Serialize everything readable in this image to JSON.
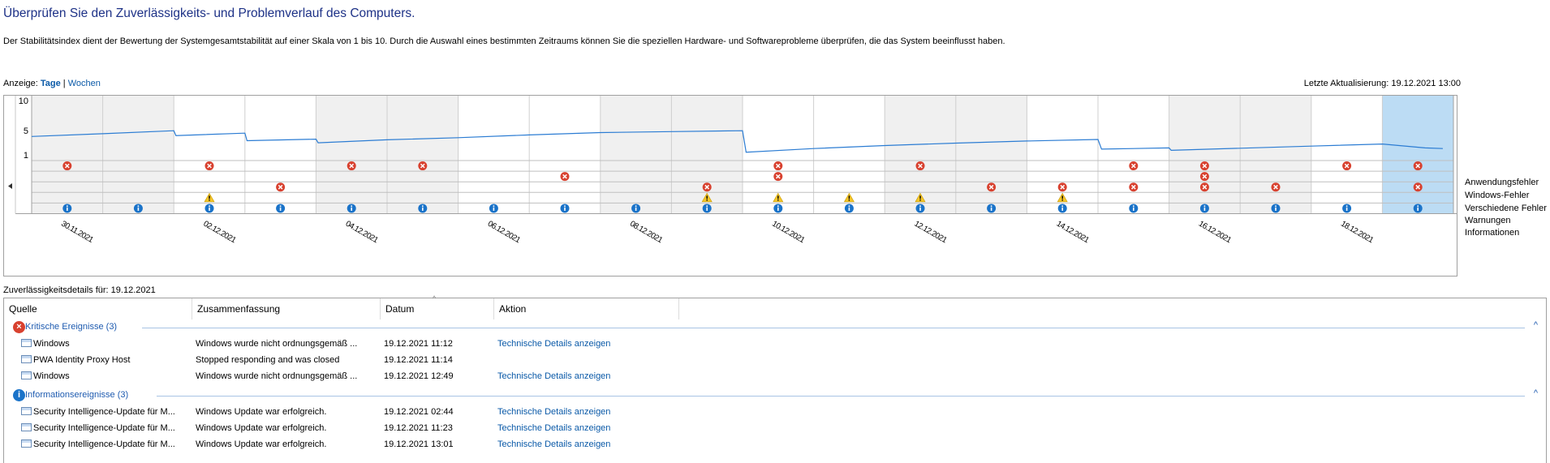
{
  "header": {
    "title": "Überprüfen Sie den Zuverlässigkeits- und Problemverlauf des Computers.",
    "description": "Der Stabilitätsindex dient der Bewertung der Systemgesamtstabilität auf einer Skala von 1 bis 10. Durch die Auswahl eines bestimmten Zeitraums können Sie die speziellen Hardware- und Softwareprobleme überprüfen, die das System beeinflusst haben.",
    "view_label": "Anzeige:",
    "view_days": "Tage",
    "view_separator": "|",
    "view_weeks": "Wochen",
    "last_update": "Letzte Aktualisierung: 19.12.2021 13:00"
  },
  "chart_data": {
    "type": "line",
    "y_ticks": [
      "10",
      "5",
      "1"
    ],
    "ylim": [
      1,
      10
    ],
    "columns": 20,
    "selected_column": 19,
    "x_labels": [
      {
        "col": 0,
        "text": "30.11.2021"
      },
      {
        "col": 2,
        "text": "02.12.2021"
      },
      {
        "col": 4,
        "text": "04.12.2021"
      },
      {
        "col": 6,
        "text": "06.12.2021"
      },
      {
        "col": 8,
        "text": "08.12.2021"
      },
      {
        "col": 10,
        "text": "10.12.2021"
      },
      {
        "col": 12,
        "text": "12.12.2021"
      },
      {
        "col": 14,
        "text": "14.12.2021"
      },
      {
        "col": 16,
        "text": "16.12.2021"
      },
      {
        "col": 18,
        "text": "18.12.2021"
      }
    ],
    "stability_index": [
      [
        0.0,
        4.05
      ],
      [
        1.0,
        4.5
      ],
      [
        2.0,
        5.0
      ],
      [
        2.03,
        4.2
      ],
      [
        3.0,
        4.6
      ],
      [
        3.03,
        3.35
      ],
      [
        4.0,
        3.6
      ],
      [
        4.03,
        3.0
      ],
      [
        5.0,
        3.5
      ],
      [
        6.0,
        3.85
      ],
      [
        7.0,
        4.3
      ],
      [
        8.0,
        4.7
      ],
      [
        9.0,
        4.85
      ],
      [
        10.0,
        5.0
      ],
      [
        10.05,
        1.45
      ],
      [
        11.0,
        2.05
      ],
      [
        12.0,
        2.55
      ],
      [
        13.0,
        2.95
      ],
      [
        14.0,
        3.3
      ],
      [
        15.0,
        3.55
      ],
      [
        15.05,
        1.95
      ],
      [
        16.0,
        2.15
      ],
      [
        16.03,
        1.75
      ],
      [
        17.0,
        2.1
      ],
      [
        18.0,
        2.45
      ],
      [
        19.0,
        2.8
      ],
      [
        19.6,
        2.15
      ],
      [
        19.85,
        2.05
      ]
    ],
    "event_rows": [
      "Anwendungsfehler",
      "Windows-Fehler",
      "Verschiedene Fehler",
      "Warnungen",
      "Informationen"
    ],
    "events": {
      "Anwendungsfehler": [
        0,
        2,
        4,
        5,
        10,
        12,
        15,
        16,
        18,
        19
      ],
      "Windows-Fehler": [
        7,
        10,
        16
      ],
      "Verschiedene Fehler": [
        3,
        9,
        13,
        14,
        15,
        16,
        17,
        19
      ],
      "Warnungen": [
        2,
        9,
        10,
        11,
        12,
        14
      ],
      "Informationen": [
        0,
        1,
        2,
        3,
        4,
        5,
        6,
        7,
        8,
        9,
        10,
        11,
        12,
        13,
        14,
        15,
        16,
        17,
        18,
        19
      ]
    },
    "colors": {
      "line": "#2b7cd3",
      "shaded": "#f0f0f0",
      "selected": "#bcdcf4",
      "error": "#d8412f",
      "warning": "#f5c62a",
      "info": "#1a73c9"
    }
  },
  "details": {
    "title": "Zuverlässigkeitsdetails für: 19.12.2021",
    "columns": [
      "Quelle",
      "Zusammenfassung",
      "Datum",
      "Aktion"
    ],
    "groups": [
      {
        "label": "Kritische Ereignisse (3)",
        "rows": [
          {
            "source": "Windows",
            "summary": "Windows wurde nicht ordnungsgemäß ...",
            "date": "19.12.2021 11:12",
            "action": "Technische Details anzeigen"
          },
          {
            "source": "PWA Identity Proxy Host",
            "summary": "Stopped responding and was closed",
            "date": "19.12.2021 11:14",
            "action": ""
          },
          {
            "source": "Windows",
            "summary": "Windows wurde nicht ordnungsgemäß ...",
            "date": "19.12.2021 12:49",
            "action": "Technische Details anzeigen"
          }
        ]
      },
      {
        "label": "Informationsereignisse (3)",
        "rows": [
          {
            "source": "Security Intelligence-Update für M...",
            "summary": "Windows Update war erfolgreich.",
            "date": "19.12.2021 02:44",
            "action": "Technische Details anzeigen"
          },
          {
            "source": "Security Intelligence-Update für M...",
            "summary": "Windows Update war erfolgreich.",
            "date": "19.12.2021 11:23",
            "action": "Technische Details anzeigen"
          },
          {
            "source": "Security Intelligence-Update für M...",
            "summary": "Windows Update war erfolgreich.",
            "date": "19.12.2021 13:01",
            "action": "Technische Details anzeigen"
          }
        ]
      }
    ]
  }
}
